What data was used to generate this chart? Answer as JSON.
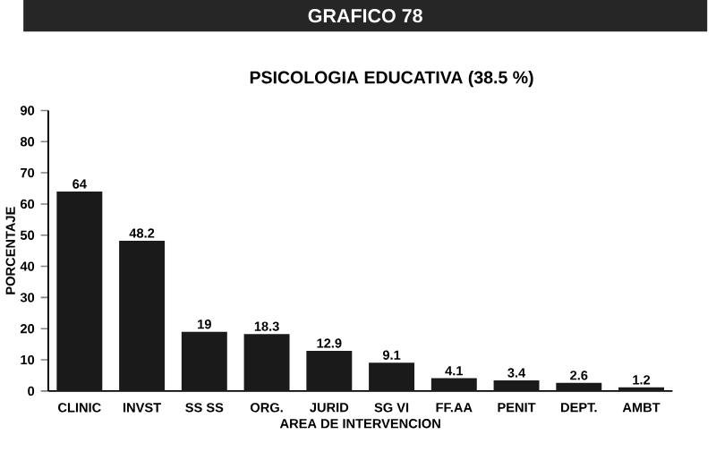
{
  "chart_data": {
    "type": "bar",
    "title": "GRAFICO 78",
    "subtitle": "PSICOLOGIA EDUCATIVA (38.5 %)",
    "xlabel": "AREA DE INTERVENCION",
    "ylabel": "PORCENTAJE",
    "categories": [
      "CLINIC",
      "INVST",
      "SS SS",
      "ORG.",
      "JURID",
      "SG VI",
      "FF.AA",
      "PENIT",
      "DEPT.",
      "AMBT"
    ],
    "values": [
      64,
      48.2,
      19,
      18.3,
      12.9,
      9.1,
      4.1,
      3.4,
      2.6,
      1.2
    ],
    "color": "#1a1a1a",
    "ylim": [
      0,
      90
    ],
    "yticks": [
      0,
      10,
      20,
      30,
      40,
      50,
      60,
      70,
      80,
      90
    ],
    "data_labels": true
  }
}
